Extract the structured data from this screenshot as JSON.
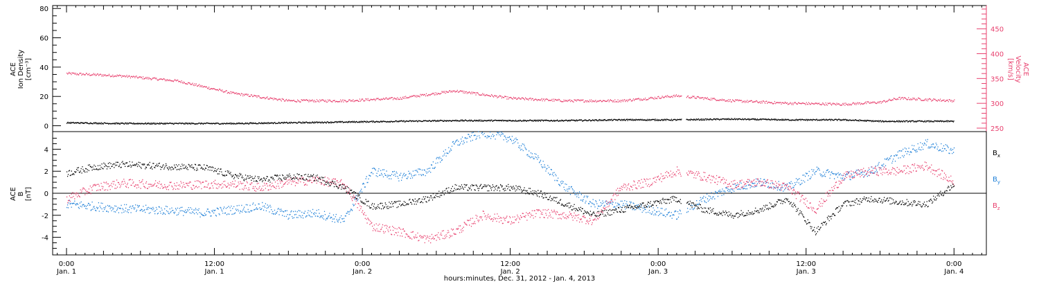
{
  "colors": {
    "density": "#000000",
    "velocity": "#e8406e",
    "bx": "#000000",
    "by": "#1f80d8",
    "bz": "#e8406e",
    "frame": "#000000"
  },
  "chart_data": [
    {
      "type": "scatter",
      "panel": "top",
      "ylabel_lines": [
        "ACE",
        "Ion Density",
        "[cm⁻³]"
      ],
      "y2label_lines": [
        "ACE",
        "Velocity",
        "[km/s]"
      ],
      "ylim": [
        -4,
        82
      ],
      "yticks": [
        0,
        20,
        40,
        60,
        80
      ],
      "ylim2": [
        243,
        497
      ],
      "yticks2": [
        250,
        300,
        350,
        400,
        450
      ],
      "xlim_hours": [
        -1.5,
        99.5
      ],
      "series": [
        {
          "key": "density",
          "axis": "left",
          "x": [
            0,
            6,
            12,
            18,
            24,
            30,
            36,
            42,
            48,
            54,
            60,
            66,
            72,
            78,
            84,
            88,
            90,
            96
          ],
          "y": [
            2,
            1.5,
            1.5,
            1.5,
            2,
            2.5,
            3,
            3.5,
            3.5,
            3.5,
            4,
            4,
            4.5,
            4,
            4,
            3,
            3,
            3
          ]
        },
        {
          "key": "velocity",
          "axis": "right",
          "x": [
            0,
            6,
            12,
            18,
            24,
            30,
            36,
            42,
            48,
            54,
            60,
            66,
            72,
            78,
            84,
            88,
            90,
            96
          ],
          "y": [
            360,
            355,
            345,
            320,
            305,
            305,
            310,
            325,
            310,
            305,
            305,
            315,
            305,
            300,
            298,
            302,
            310,
            305
          ]
        }
      ],
      "gaps": [
        [
          66.5,
          67
        ]
      ]
    },
    {
      "type": "scatter",
      "panel": "bottom",
      "ylabel_lines": [
        "ACE",
        "B",
        "[nT]"
      ],
      "ylim": [
        -5.6,
        5.6
      ],
      "yticks": [
        -4,
        -2,
        0,
        2,
        4
      ],
      "zero_line": true,
      "xlim_hours": [
        -1.5,
        99.5
      ],
      "legend": [
        "B",
        "B",
        "B"
      ],
      "legend_subscripts": [
        "x",
        "y",
        "z"
      ],
      "series": [
        {
          "key": "bx",
          "x": [
            0,
            3,
            6,
            9,
            12,
            15,
            18,
            21,
            24,
            27,
            30,
            33,
            36,
            39,
            42,
            45,
            48,
            51,
            54,
            57,
            60,
            63,
            66,
            69,
            72,
            75,
            78,
            81,
            84,
            87,
            90,
            93,
            96
          ],
          "y": [
            1.8,
            2.4,
            2.6,
            2.5,
            2.4,
            2.3,
            1.6,
            1.2,
            1.5,
            1.4,
            0.5,
            -1.2,
            -1.0,
            -0.5,
            0.5,
            0.5,
            0.5,
            0.0,
            -1.0,
            -2.0,
            -1.5,
            -1.0,
            -0.5,
            -1.5,
            -2.0,
            -1.5,
            -0.5,
            -3.5,
            -1.0,
            -0.5,
            -0.8,
            -1.0,
            0.8
          ]
        },
        {
          "key": "by",
          "x": [
            0,
            3,
            6,
            9,
            12,
            15,
            18,
            21,
            24,
            27,
            30,
            33,
            36,
            39,
            42,
            45,
            48,
            51,
            54,
            57,
            60,
            63,
            66,
            69,
            72,
            75,
            78,
            81,
            84,
            87,
            90,
            93,
            96
          ],
          "y": [
            -1.0,
            -1.2,
            -1.4,
            -1.5,
            -1.6,
            -1.8,
            -1.5,
            -1.2,
            -2.0,
            -1.8,
            -2.5,
            2.0,
            1.5,
            2.0,
            4.5,
            5.5,
            5.0,
            3.0,
            0.5,
            -1.0,
            -1.0,
            -1.5,
            -2.0,
            -0.5,
            0.5,
            1.0,
            0.5,
            2.0,
            1.5,
            2.0,
            3.5,
            4.5,
            3.8
          ]
        },
        {
          "key": "bz",
          "x": [
            0,
            3,
            6,
            9,
            12,
            15,
            18,
            21,
            24,
            27,
            30,
            33,
            36,
            39,
            42,
            45,
            48,
            51,
            54,
            57,
            60,
            63,
            66,
            69,
            72,
            75,
            78,
            81,
            84,
            87,
            90,
            93,
            96
          ],
          "y": [
            -0.5,
            0.5,
            0.9,
            0.8,
            0.7,
            0.8,
            0.8,
            0.5,
            1.0,
            1.2,
            0.8,
            -3.0,
            -3.5,
            -4.2,
            -3.5,
            -2.0,
            -2.5,
            -1.8,
            -2.0,
            -2.5,
            0.5,
            1.0,
            2.0,
            1.5,
            0.8,
            1.0,
            0.5,
            -1.5,
            1.5,
            2.0,
            2.0,
            2.5,
            1.0
          ]
        }
      ],
      "gaps": [
        [
          66.5,
          67
        ]
      ]
    }
  ],
  "x_axis": {
    "tick_hours": [
      0,
      16,
      32,
      48,
      64,
      80,
      96
    ],
    "tick_labels_top": [
      "0:00",
      "12:00",
      "0:00",
      "12:00",
      "0:00",
      "12:00",
      "0:00"
    ],
    "tick_labels_bottom": [
      "Jan. 1",
      "Jan. 1",
      "Jan. 2",
      "Jan. 2",
      "Jan. 3",
      "Jan. 3",
      "Jan. 4"
    ],
    "label": "hours:minutes, Dec. 31, 2012 - Jan.  4, 2013"
  }
}
